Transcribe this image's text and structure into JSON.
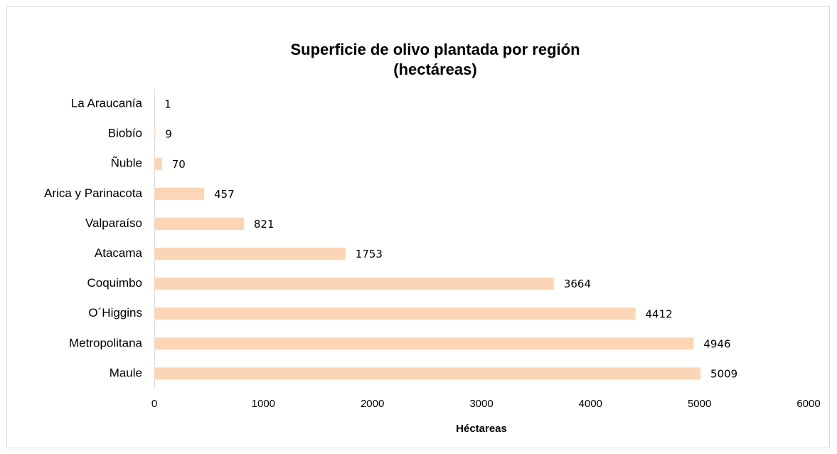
{
  "chart_data": {
    "type": "barh",
    "title": "Superficie de olivo plantada por región",
    "subtitle": "(hectáreas)",
    "xlabel": "Héctareas",
    "categories": [
      "La Araucanía",
      "Biobío",
      "Ñuble",
      "Arica y Parinacota",
      "Valparaíso",
      "Atacama",
      "Coquimbo",
      "O´Higgins",
      "Metropolitana",
      "Maule"
    ],
    "values": [
      1,
      9,
      70,
      457,
      821,
      1753,
      3664,
      4412,
      4946,
      5009
    ],
    "color": "#fbd5b5",
    "xlim": [
      0,
      6000
    ],
    "xticks": [
      0,
      1000,
      2000,
      3000,
      4000,
      5000,
      6000
    ],
    "grid": false
  }
}
